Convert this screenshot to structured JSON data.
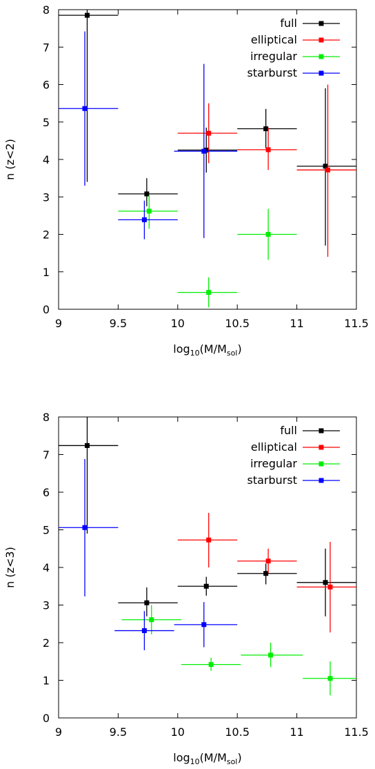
{
  "chart_data": [
    {
      "type": "scatter",
      "xlabel": {
        "base": "log",
        "base_sub": "10",
        "main": "(M/M",
        "main_sub": "sol",
        "close": ")"
      },
      "ylabel": "n (z<2)",
      "xlim": [
        9,
        11.5
      ],
      "ylim": [
        0,
        8
      ],
      "xticks": [
        "9",
        "9.5",
        "10",
        "10.5",
        "11",
        "11.5"
      ],
      "yticks": [
        "0",
        "1",
        "2",
        "3",
        "4",
        "5",
        "6",
        "7",
        "8"
      ],
      "legend_position": "top-right",
      "series": [
        {
          "name": "full",
          "color": "#000000",
          "points": [
            {
              "x": 9.24,
              "y": 7.85,
              "xerr": [
                9.0,
                9.5
              ],
              "yerr": [
                3.4,
                8.0
              ]
            },
            {
              "x": 9.74,
              "y": 3.08,
              "xerr": [
                9.5,
                10.0
              ],
              "yerr": [
                2.75,
                3.5
              ]
            },
            {
              "x": 10.24,
              "y": 4.25,
              "xerr": [
                10.0,
                10.5
              ],
              "yerr": [
                3.65,
                4.85
              ]
            },
            {
              "x": 10.74,
              "y": 4.82,
              "xerr": [
                10.5,
                11.0
              ],
              "yerr": [
                4.3,
                5.35
              ]
            },
            {
              "x": 11.24,
              "y": 3.82,
              "xerr": [
                11.0,
                11.5
              ],
              "yerr": [
                1.7,
                5.9
              ]
            }
          ]
        },
        {
          "name": "elliptical",
          "color": "#ff0000",
          "points": [
            {
              "x": 10.26,
              "y": 4.7,
              "xerr": [
                10.0,
                10.5
              ],
              "yerr": [
                3.9,
                5.5
              ]
            },
            {
              "x": 10.76,
              "y": 4.26,
              "xerr": [
                10.5,
                11.0
              ],
              "yerr": [
                3.72,
                4.85
              ]
            },
            {
              "x": 11.26,
              "y": 3.72,
              "xerr": [
                11.0,
                11.5
              ],
              "yerr": [
                1.4,
                6.0
              ]
            }
          ]
        },
        {
          "name": "irregular",
          "color": "#00ee00",
          "points": [
            {
              "x": 9.76,
              "y": 2.62,
              "xerr": [
                9.5,
                10.0
              ],
              "yerr": [
                2.15,
                3.05
              ]
            },
            {
              "x": 10.26,
              "y": 0.45,
              "xerr": [
                10.0,
                10.5
              ],
              "yerr": [
                0.05,
                0.85
              ]
            },
            {
              "x": 10.76,
              "y": 2.0,
              "xerr": [
                10.5,
                11.0
              ],
              "yerr": [
                1.32,
                2.68
              ]
            }
          ]
        },
        {
          "name": "starburst",
          "color": "#0000ff",
          "points": [
            {
              "x": 9.22,
              "y": 5.36,
              "xerr": [
                8.97,
                9.5
              ],
              "yerr": [
                3.3,
                7.42
              ]
            },
            {
              "x": 9.72,
              "y": 2.39,
              "xerr": [
                9.5,
                10.0
              ],
              "yerr": [
                1.87,
                2.9
              ]
            },
            {
              "x": 10.22,
              "y": 4.22,
              "xerr": [
                9.97,
                10.5
              ],
              "yerr": [
                1.9,
                6.55
              ]
            }
          ]
        }
      ]
    },
    {
      "type": "scatter",
      "xlabel": {
        "base": "log",
        "base_sub": "10",
        "main": "(M/M",
        "main_sub": "sol",
        "close": ")"
      },
      "ylabel": "n (z<3)",
      "xlim": [
        9,
        11.5
      ],
      "ylim": [
        0,
        8
      ],
      "xticks": [
        "9",
        "9.5",
        "10",
        "10.5",
        "11",
        "11.5"
      ],
      "yticks": [
        "0",
        "1",
        "2",
        "3",
        "4",
        "5",
        "6",
        "7",
        "8"
      ],
      "legend_position": "top-right",
      "series": [
        {
          "name": "full",
          "color": "#000000",
          "points": [
            {
              "x": 9.24,
              "y": 7.24,
              "xerr": [
                9.0,
                9.5
              ],
              "yerr": [
                4.9,
                8.0
              ]
            },
            {
              "x": 9.74,
              "y": 3.06,
              "xerr": [
                9.5,
                10.0
              ],
              "yerr": [
                2.7,
                3.47
              ]
            },
            {
              "x": 10.24,
              "y": 3.5,
              "xerr": [
                10.0,
                10.5
              ],
              "yerr": [
                3.25,
                3.75
              ]
            },
            {
              "x": 10.74,
              "y": 3.84,
              "xerr": [
                10.5,
                11.0
              ],
              "yerr": [
                3.55,
                4.1
              ]
            },
            {
              "x": 11.24,
              "y": 3.6,
              "xerr": [
                11.0,
                11.5
              ],
              "yerr": [
                2.7,
                4.5
              ]
            }
          ]
        },
        {
          "name": "elliptical",
          "color": "#ff0000",
          "points": [
            {
              "x": 10.26,
              "y": 4.73,
              "xerr": [
                10.0,
                10.5
              ],
              "yerr": [
                4.0,
                5.45
              ]
            },
            {
              "x": 10.76,
              "y": 4.17,
              "xerr": [
                10.5,
                11.0
              ],
              "yerr": [
                3.85,
                4.5
              ]
            },
            {
              "x": 11.28,
              "y": 3.48,
              "xerr": [
                11.0,
                11.5
              ],
              "yerr": [
                2.27,
                4.68
              ]
            }
          ]
        },
        {
          "name": "irregular",
          "color": "#00ee00",
          "points": [
            {
              "x": 9.78,
              "y": 2.61,
              "xerr": [
                9.53,
                10.03
              ],
              "yerr": [
                2.22,
                3.0
              ]
            },
            {
              "x": 10.28,
              "y": 1.42,
              "xerr": [
                10.03,
                10.53
              ],
              "yerr": [
                1.25,
                1.6
              ]
            },
            {
              "x": 10.78,
              "y": 1.67,
              "xerr": [
                10.53,
                11.05
              ],
              "yerr": [
                1.35,
                2.0
              ]
            },
            {
              "x": 11.28,
              "y": 1.05,
              "xerr": [
                11.05,
                11.5
              ],
              "yerr": [
                0.6,
                1.5
              ]
            }
          ]
        },
        {
          "name": "starburst",
          "color": "#0000ff",
          "points": [
            {
              "x": 9.22,
              "y": 5.06,
              "xerr": [
                8.97,
                9.5
              ],
              "yerr": [
                3.23,
                6.88
              ]
            },
            {
              "x": 9.72,
              "y": 2.32,
              "xerr": [
                9.47,
                9.97
              ],
              "yerr": [
                1.8,
                2.84
              ]
            },
            {
              "x": 10.22,
              "y": 2.48,
              "xerr": [
                9.97,
                10.5
              ],
              "yerr": [
                1.88,
                3.08
              ]
            }
          ]
        }
      ]
    }
  ]
}
